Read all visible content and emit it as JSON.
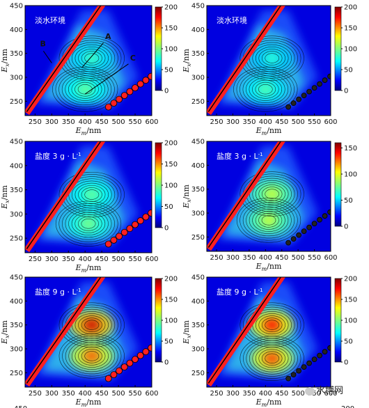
{
  "chart_data": [
    {
      "type": "heatmap",
      "title": "淡水环境",
      "xticks": [
        "250",
        "300",
        "350",
        "400",
        "450",
        "500",
        "550",
        "600"
      ],
      "yticks": [
        "250",
        "300",
        "350",
        "400",
        "450"
      ],
      "xlim": [
        220,
        600
      ],
      "ylim": [
        220,
        450
      ],
      "cbar_ticks": [
        "0",
        "50",
        "100",
        "150",
        "200"
      ],
      "cbar_range": [
        0,
        200
      ],
      "annotations": [
        {
          "text": "A",
          "x": 460,
          "y": 380
        },
        {
          "text": "B",
          "x": 265,
          "y": 365
        },
        {
          "text": "C",
          "x": 535,
          "y": 335
        }
      ],
      "peaks": [
        {
          "x": 420,
          "y": 340,
          "value": 85
        },
        {
          "x": 400,
          "y": 275,
          "value": 95
        }
      ]
    },
    {
      "type": "heatmap",
      "title": "淡水环境",
      "xticks": [
        "250",
        "300",
        "350",
        "400",
        "450",
        "500",
        "550",
        "600"
      ],
      "yticks": [
        "250",
        "300",
        "350",
        "400",
        "450"
      ],
      "xlim": [
        220,
        600
      ],
      "ylim": [
        220,
        450
      ],
      "cbar_ticks": [
        "0",
        "50",
        "100",
        "150",
        "200"
      ],
      "cbar_range": [
        0,
        200
      ],
      "peaks": [
        {
          "x": 420,
          "y": 340,
          "value": 80
        },
        {
          "x": 400,
          "y": 275,
          "value": 90
        }
      ]
    },
    {
      "type": "heatmap",
      "title": "盐度 3 g · L",
      "title_sup": "-1",
      "xticks": [
        "250",
        "300",
        "350",
        "400",
        "450",
        "500",
        "550",
        "600"
      ],
      "yticks": [
        "250",
        "300",
        "350",
        "400",
        "450"
      ],
      "xlim": [
        220,
        600
      ],
      "ylim": [
        220,
        450
      ],
      "cbar_ticks": [
        "0",
        "50",
        "100",
        "150",
        "200"
      ],
      "cbar_range": [
        0,
        200
      ],
      "peaks": [
        {
          "x": 420,
          "y": 340,
          "value": 95
        },
        {
          "x": 410,
          "y": 280,
          "value": 100
        }
      ]
    },
    {
      "type": "heatmap",
      "title": "盐度 3 g · L",
      "title_sup": "-1",
      "xticks": [
        "250",
        "300",
        "350",
        "400",
        "450",
        "500",
        "550",
        "600"
      ],
      "yticks": [
        "250",
        "300",
        "350",
        "400",
        "450"
      ],
      "xlim": [
        220,
        600
      ],
      "ylim": [
        220,
        450
      ],
      "cbar_ticks": [
        "0",
        "50",
        "100",
        "150"
      ],
      "cbar_range": [
        0,
        160
      ],
      "peaks": [
        {
          "x": 420,
          "y": 340,
          "value": 95
        },
        {
          "x": 410,
          "y": 285,
          "value": 95
        }
      ]
    },
    {
      "type": "heatmap",
      "title": "盐度 9 g · L",
      "title_sup": "-1",
      "xticks": [
        "250",
        "300",
        "350",
        "400",
        "450",
        "500",
        "550",
        "600"
      ],
      "yticks": [
        "250",
        "300",
        "350",
        "400",
        "450"
      ],
      "xlim": [
        220,
        600
      ],
      "ylim": [
        220,
        450
      ],
      "cbar_ticks": [
        "0",
        "50",
        "100",
        "150",
        "200"
      ],
      "cbar_range": [
        0,
        200
      ],
      "peaks": [
        {
          "x": 420,
          "y": 350,
          "value": 185
        },
        {
          "x": 420,
          "y": 285,
          "value": 160
        }
      ]
    },
    {
      "type": "heatmap",
      "title": "盐度 9 g · L",
      "title_sup": "-1",
      "xticks": [
        "250",
        "300",
        "350",
        "400",
        "450",
        "500",
        "550",
        "600"
      ],
      "yticks": [
        "250",
        "300",
        "350",
        "400",
        "450"
      ],
      "xlim": [
        220,
        600
      ],
      "ylim": [
        220,
        450
      ],
      "cbar_ticks": [
        "0",
        "50",
        "100",
        "150",
        "200"
      ],
      "cbar_range": [
        0,
        200
      ],
      "peaks": [
        {
          "x": 420,
          "y": 350,
          "value": 175
        },
        {
          "x": 420,
          "y": 280,
          "value": 165
        }
      ]
    }
  ],
  "xlabel_main": "E",
  "xlabel_sub": "m",
  "xlabel_unit": "/nm",
  "ylabel_main": "E",
  "ylabel_sub": "x",
  "ylabel_unit": "/nm",
  "bottom_partial": {
    "left": "450",
    "right_tick": "200"
  },
  "watermark": "水博网"
}
